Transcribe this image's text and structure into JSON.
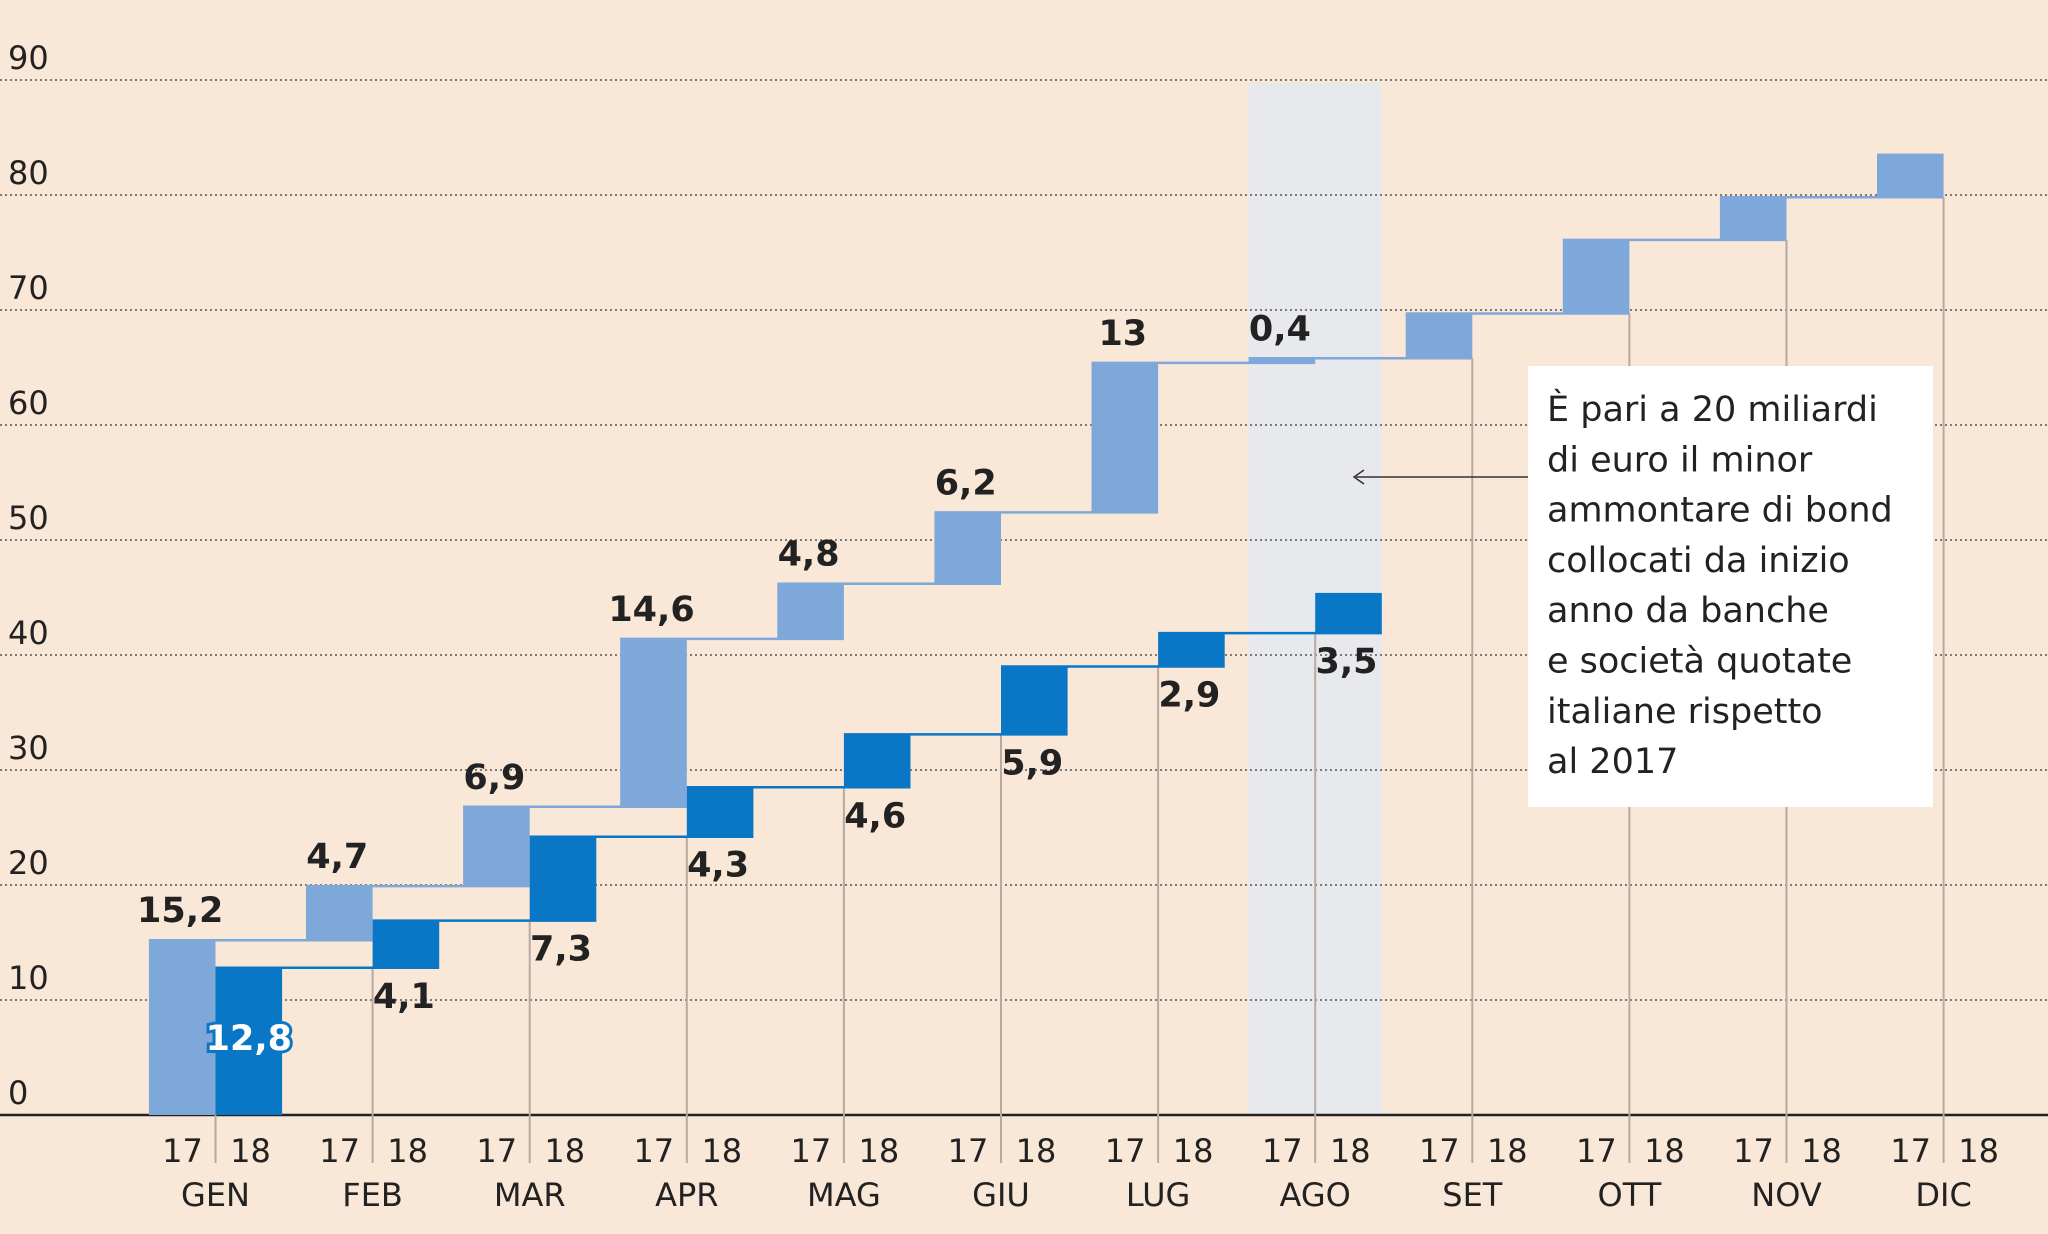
{
  "chart_data": {
    "type": "waterfall",
    "categories": [
      "GEN",
      "FEB",
      "MAR",
      "APR",
      "MAG",
      "GIU",
      "LUG",
      "AGO",
      "SET",
      "OTT",
      "NOV",
      "DIC"
    ],
    "series": [
      {
        "name": "17",
        "color": "#7fa8da",
        "values": [
          15.2,
          4.7,
          6.9,
          14.6,
          4.8,
          6.2,
          13,
          0.4,
          3.9,
          6.4,
          3.7,
          3.8
        ],
        "value_labels": [
          "15,2",
          "4,7",
          "6,9",
          "14,6",
          "4,8",
          "6,2",
          "13",
          "0,4",
          null,
          null,
          null,
          null
        ]
      },
      {
        "name": "18",
        "color": "#0a77c6",
        "values": [
          12.8,
          4.1,
          7.3,
          4.3,
          4.6,
          5.9,
          2.9,
          3.5,
          null,
          null,
          null,
          null
        ],
        "value_labels": [
          "12,8",
          "4,1",
          "7,3",
          "4,3",
          "4,6",
          "5,9",
          "2,9",
          "3,5",
          null,
          null,
          null,
          null
        ]
      }
    ],
    "ylim": [
      0,
      90
    ],
    "yticks": [
      0,
      10,
      20,
      30,
      40,
      50,
      60,
      70,
      80,
      90
    ],
    "grid": true,
    "highlight_category": "AGO",
    "annotation": [
      "È pari a 20 miliardi",
      "di euro il minor",
      "ammontare di bond",
      "collocati da inizio",
      "anno da banche",
      "e società quotate",
      "italiane rispetto",
      "al 2017"
    ]
  }
}
